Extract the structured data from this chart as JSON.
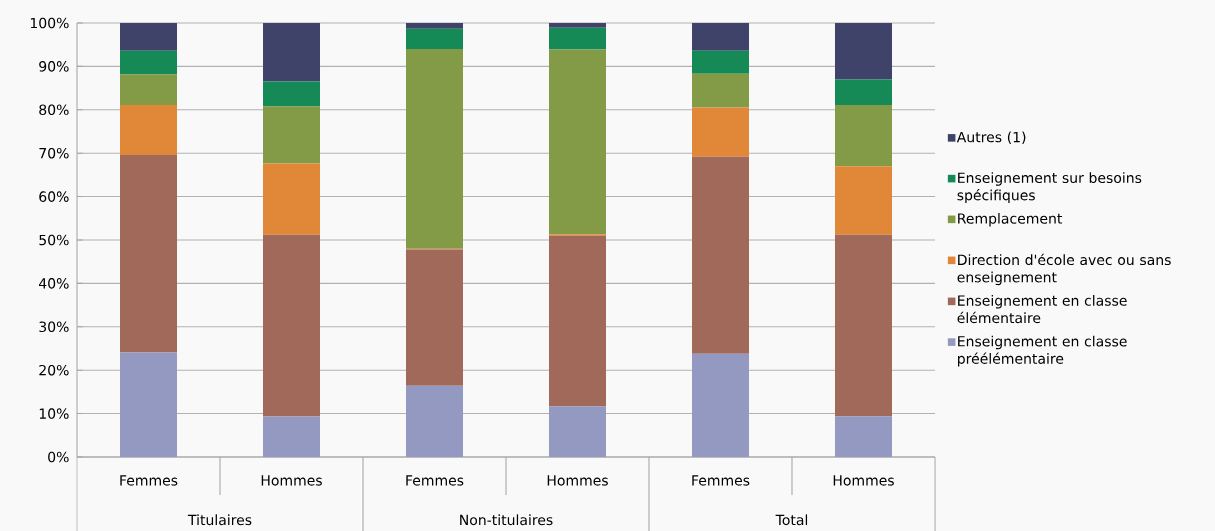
{
  "chart_data": {
    "type": "bar",
    "stacked": true,
    "categories": [
      "Femmes",
      "Hommes",
      "Femmes",
      "Hommes",
      "Femmes",
      "Hommes"
    ],
    "annotations": [
      "Titulaires",
      "Non-titulaires",
      "Total"
    ],
    "series": [
      {
        "name": "Enseignement en classe préélémentaire",
        "color": "#9399c0",
        "values": [
          24.1,
          9.3,
          16.4,
          11.7,
          23.8,
          9.4
        ]
      },
      {
        "name": "Enseignement en classe élémentaire",
        "color": "#a0695a",
        "values": [
          45.5,
          41.9,
          31.4,
          39.3,
          45.4,
          41.8
        ]
      },
      {
        "name": "Direction d'école avec ou sans enseignement",
        "color": "#e08838",
        "values": [
          11.5,
          16.4,
          0.2,
          0.3,
          11.3,
          15.8
        ]
      },
      {
        "name": "Remplacement",
        "color": "#839a46",
        "values": [
          7.1,
          13.2,
          46.0,
          42.6,
          7.8,
          14.1
        ]
      },
      {
        "name": "Enseignement sur besoins spécifiques",
        "color": "#158a57",
        "values": [
          5.4,
          5.7,
          4.7,
          5.0,
          5.3,
          5.9
        ]
      },
      {
        "name": "Autres (1)",
        "color": "#3f4269",
        "values": [
          6.4,
          13.5,
          1.3,
          1.1,
          6.4,
          13.0
        ]
      }
    ],
    "ylim": [
      0,
      100
    ],
    "yticks": [
      {
        "value": 0,
        "label": "0%"
      },
      {
        "value": 10,
        "label": "10%"
      },
      {
        "value": 20,
        "label": "20%"
      },
      {
        "value": 30,
        "label": "30%"
      },
      {
        "value": 40,
        "label": "40%"
      },
      {
        "value": 50,
        "label": "50%"
      },
      {
        "value": 60,
        "label": "60%"
      },
      {
        "value": 70,
        "label": "70%"
      },
      {
        "value": 80,
        "label": "80%"
      },
      {
        "value": 90,
        "label": "90%"
      },
      {
        "value": 100,
        "label": "100%"
      }
    ],
    "grid": "y",
    "legend": "right"
  }
}
